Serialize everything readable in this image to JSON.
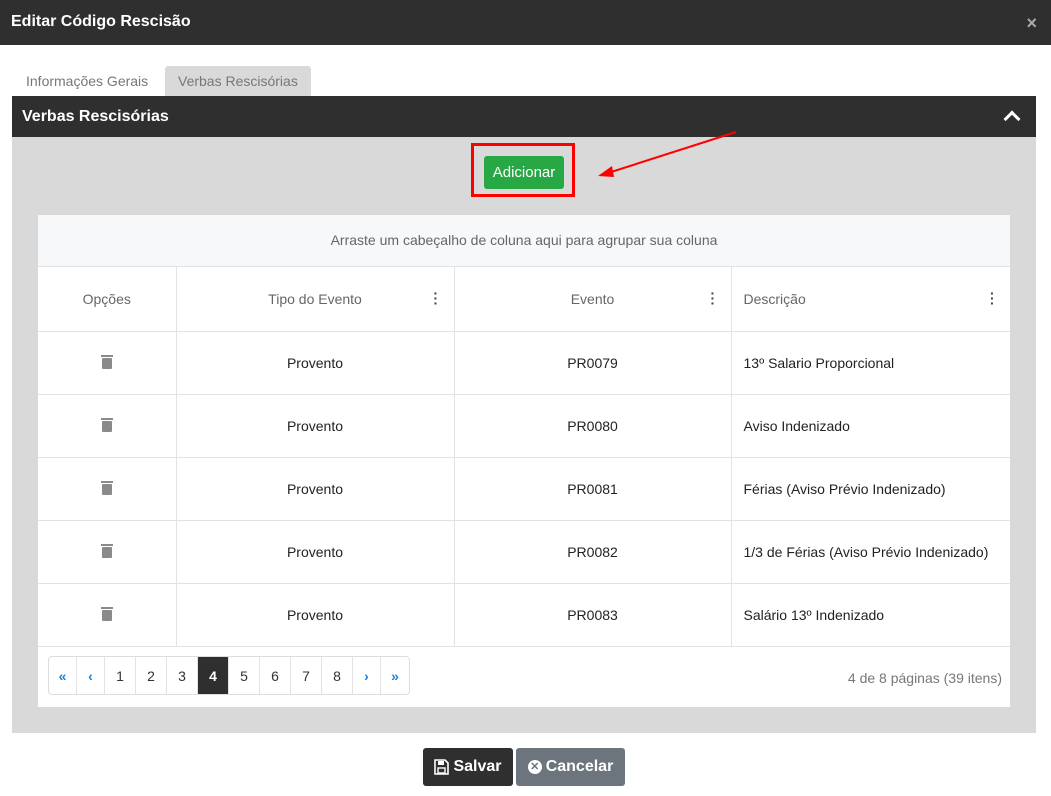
{
  "dialog": {
    "title": "Editar Código Rescisão",
    "close_icon": "×"
  },
  "tabs": [
    {
      "label": "Informações Gerais",
      "active": false
    },
    {
      "label": "Verbas Rescisórias",
      "active": true
    }
  ],
  "panel": {
    "title": "Verbas Rescisórias",
    "add_label": "Adicionar"
  },
  "grid": {
    "group_hint": "Arraste um cabeçalho de coluna aqui para agrupar sua coluna",
    "columns": [
      "Opções",
      "Tipo do Evento",
      "Evento",
      "Descrição"
    ],
    "rows": [
      {
        "tipo": "Provento",
        "evento": "PR0079",
        "descricao": "13º Salario Proporcional"
      },
      {
        "tipo": "Provento",
        "evento": "PR0080",
        "descricao": "Aviso Indenizado"
      },
      {
        "tipo": "Provento",
        "evento": "PR0081",
        "descricao": "Férias (Aviso Prévio Indenizado)"
      },
      {
        "tipo": "Provento",
        "evento": "PR0082",
        "descricao": "1/3 de Férias (Aviso Prévio Indenizado)"
      },
      {
        "tipo": "Provento",
        "evento": "PR0083",
        "descricao": "Salário 13º Indenizado"
      }
    ]
  },
  "pager": {
    "first": "«",
    "prev": "‹",
    "pages": [
      "1",
      "2",
      "3",
      "4",
      "5",
      "6",
      "7",
      "8"
    ],
    "current": "4",
    "next": "›",
    "last": "»",
    "info": "4 de 8 páginas (39 itens)"
  },
  "footer": {
    "save_label": "Salvar",
    "cancel_label": "Cancelar"
  },
  "colors": {
    "header": "#2f2f2f",
    "add": "#28a745",
    "highlight": "#ff0000",
    "cancel": "#6c757d"
  }
}
